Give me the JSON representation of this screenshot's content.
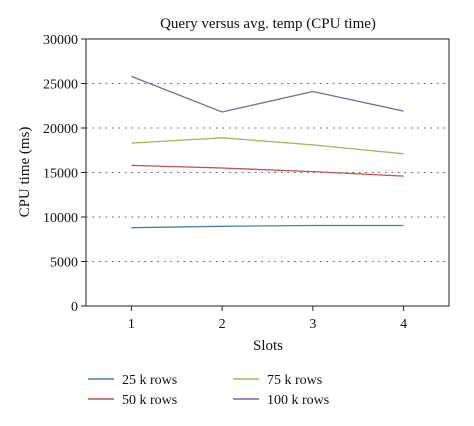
{
  "chart_data": {
    "type": "line",
    "title": "Query versus avg. temp (CPU time)",
    "xlabel": "Slots",
    "ylabel": "CPU time (ms)",
    "x": [
      1,
      2,
      3,
      4
    ],
    "x_tick_labels": [
      "1",
      "2",
      "3",
      "4"
    ],
    "xlim": [
      0.5,
      4.5
    ],
    "ylim": [
      0,
      30000
    ],
    "y_ticks": [
      0,
      5000,
      10000,
      15000,
      20000,
      25000,
      30000
    ],
    "y_tick_labels": [
      "0",
      "5000",
      "10000",
      "15000",
      "20000",
      "25000",
      "30000"
    ],
    "grid": "horizontal dotted",
    "legend_position": "bottom",
    "series": [
      {
        "name": "25 k rows",
        "color": "#4a7fb5",
        "values": [
          8800,
          8950,
          9050,
          9050
        ]
      },
      {
        "name": "50 k rows",
        "color": "#c0504d",
        "values": [
          15800,
          15500,
          15100,
          14600
        ]
      },
      {
        "name": "75 k rows",
        "color": "#9bbb59",
        "values": [
          18300,
          18900,
          18100,
          17100
        ]
      },
      {
        "name": "100 k rows",
        "color": "#8064a2",
        "values": [
          25800,
          21800,
          24100,
          21900
        ]
      }
    ]
  }
}
